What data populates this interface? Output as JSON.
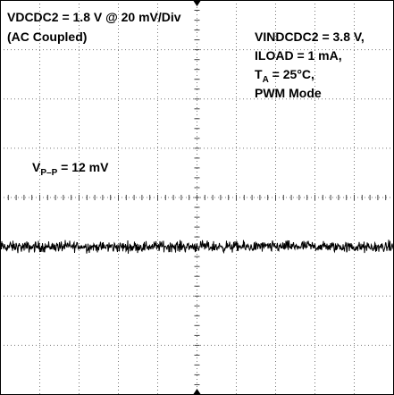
{
  "chart_data": {
    "type": "line",
    "title": "",
    "xlabel": "",
    "ylabel": "",
    "grid": true,
    "divisions": {
      "horizontal": 10,
      "vertical": 8
    },
    "series": [
      {
        "trace": "AC-coupled output voltage ripple",
        "vertical_scale_mv_per_div": 20,
        "peak_to_peak_mv": 12,
        "baseline_division": 5
      }
    ],
    "annotations": {
      "scale_line1": "VDCDC2 = 1.8 V @ 20 mV/Div",
      "scale_line2": "(AC Coupled)",
      "cond_vin": "VINDCDC2 = 3.8 V,",
      "cond_iload": "ILOAD = 1 mA,",
      "cond_ta_prefix": "T",
      "cond_ta_sub": "A",
      "cond_ta_suffix": " = 25°C,",
      "cond_mode": "PWM Mode",
      "vpp_prefix": "V",
      "vpp_sub": "P–P",
      "vpp_suffix": " = 12 mV"
    }
  }
}
